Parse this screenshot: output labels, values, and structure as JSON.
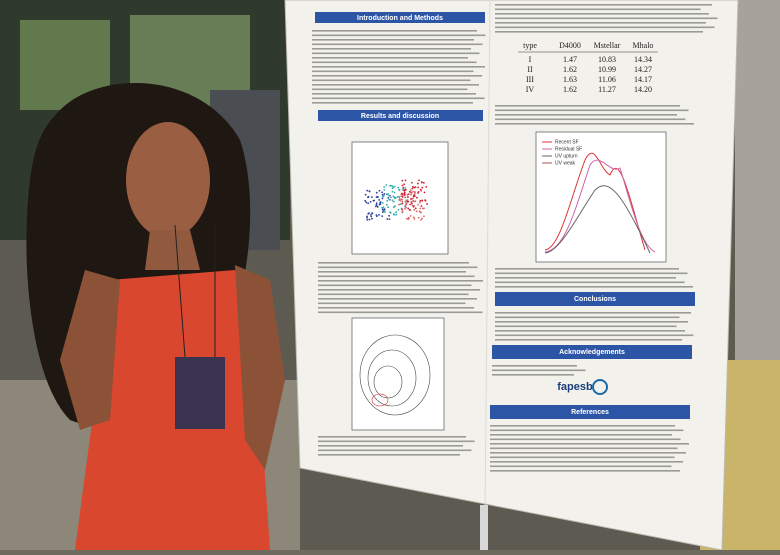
{
  "poster": {
    "sections": [
      "Introduction and Methods",
      "Results and discussion",
      "Conclusions",
      "Acknowledgements",
      "References"
    ],
    "table": {
      "header": [
        "type",
        "D4000",
        "Mstellar",
        "Mhalo"
      ],
      "rows": [
        [
          "I",
          "1.47",
          "10.83",
          "14.34"
        ],
        [
          "II",
          "1.62",
          "10.99",
          "14.27"
        ],
        [
          "III",
          "1.63",
          "11.06",
          "14.17"
        ],
        [
          "IV",
          "1.62",
          "11.27",
          "14.20"
        ]
      ]
    },
    "legend": [
      "Recent SF",
      "Residual SF",
      "UV upturn",
      "UV weak"
    ],
    "funding": "fapesb"
  }
}
